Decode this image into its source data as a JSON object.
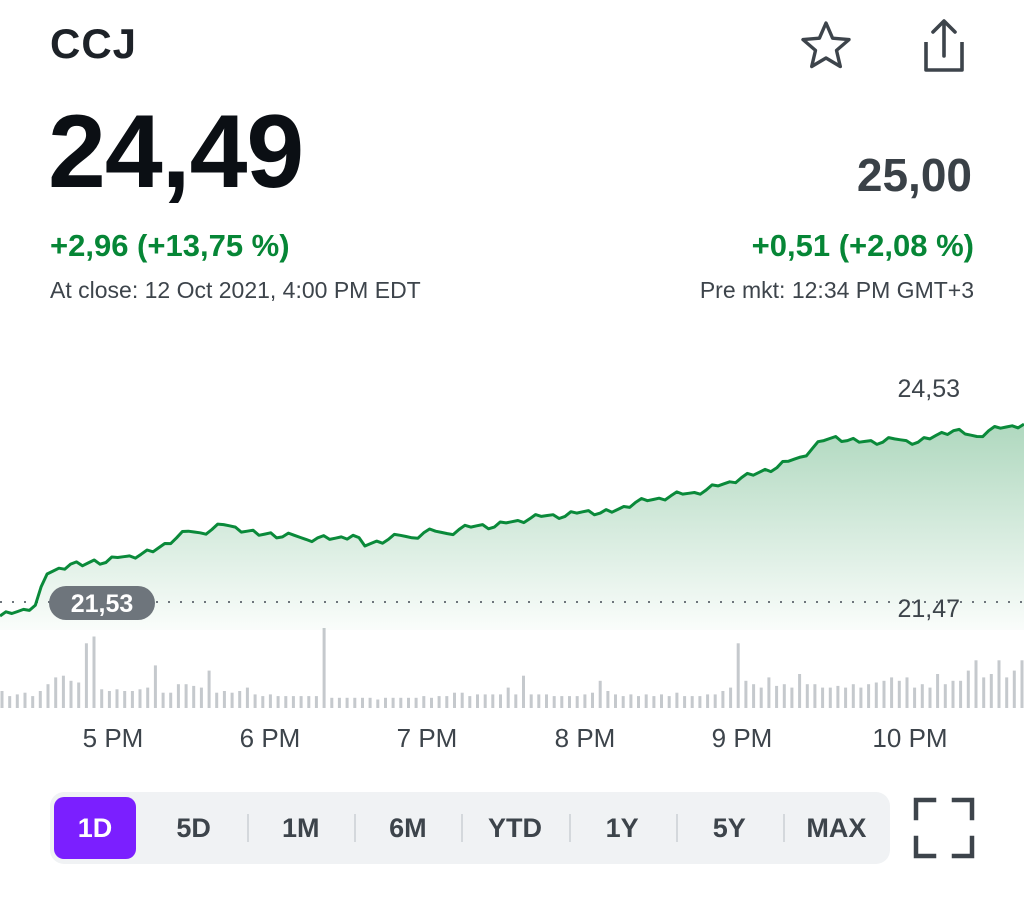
{
  "header": {
    "ticker": "CCJ",
    "star_icon": "star-outline-icon",
    "share_icon": "share-icon"
  },
  "quote": {
    "price": "24,49",
    "change": "+2,96 (+13,75 %)",
    "close_label": "At close: 12 Oct 2021, 4:00 PM EDT",
    "pre_price": "25,00",
    "pre_change": "+0,51 (+2,08 %)",
    "pre_label": "Pre mkt: 12:34 PM GMT+3",
    "accent_color": "#068636"
  },
  "chart_data": {
    "type": "area",
    "x_tick_labels": [
      "5 PM",
      "6 PM",
      "7 PM",
      "8 PM",
      "9 PM",
      "10 PM"
    ],
    "previous_close": "21,53",
    "high_label": "24,53",
    "low_label": "21,47",
    "ylim": [
      21.3,
      24.7
    ],
    "series": [
      {
        "values": [
          21.47,
          21.5,
          21.55,
          21.6,
          21.98,
          22.05,
          22.1,
          22.08,
          22.15,
          22.12,
          22.18,
          22.2,
          22.22,
          22.25,
          22.35,
          22.42,
          22.5,
          22.48,
          22.52,
          22.58,
          22.55,
          22.5,
          22.45,
          22.48,
          22.43,
          22.45,
          22.4,
          22.42,
          22.4,
          22.43,
          22.45,
          22.32,
          22.38,
          22.4,
          22.45,
          22.42,
          22.48,
          22.5,
          22.47,
          22.52,
          22.55,
          22.58,
          22.55,
          22.6,
          22.63,
          22.65,
          22.68,
          22.7,
          22.68,
          22.72,
          22.75,
          22.72,
          22.73,
          22.8,
          22.85,
          22.87,
          22.9,
          22.93,
          22.95,
          22.97,
          23.0,
          23.05,
          23.1,
          23.15,
          23.18,
          23.25,
          23.27,
          23.35,
          23.4,
          23.5,
          23.6,
          23.65,
          23.6,
          23.58,
          23.6,
          23.58,
          23.62,
          23.6,
          23.58,
          23.62,
          23.7,
          23.72,
          23.68,
          23.65,
          23.72,
          23.75,
          23.78,
          23.8
        ]
      }
    ],
    "volumes": [
      10,
      7,
      8,
      9,
      7,
      10,
      14,
      18,
      19,
      16,
      15,
      38,
      42,
      11,
      10,
      11,
      10,
      10,
      11,
      12,
      25,
      9,
      9,
      14,
      14,
      13,
      12,
      22,
      9,
      10,
      9,
      10,
      12,
      8,
      7,
      8,
      7,
      7,
      7,
      7,
      7,
      7,
      47,
      6,
      6,
      6,
      6,
      6,
      6,
      5,
      6,
      6,
      6,
      6,
      6,
      7,
      6,
      7,
      7,
      9,
      9,
      7,
      8,
      8,
      8,
      8,
      12,
      8,
      19,
      8,
      8,
      8,
      7,
      7,
      7,
      7,
      8,
      9,
      16,
      10,
      8,
      7,
      8,
      7,
      8,
      7,
      8,
      7,
      9,
      7,
      7,
      7,
      8,
      8,
      10,
      12,
      38,
      16,
      14,
      12,
      18,
      13,
      14,
      12,
      20,
      14,
      14,
      12,
      12,
      13,
      12,
      14,
      12,
      14,
      15,
      16,
      18,
      16,
      18,
      12,
      14,
      12,
      20,
      14,
      16,
      16,
      22,
      28,
      18,
      20,
      28,
      18,
      22,
      28
    ]
  },
  "range": {
    "items": [
      "1D",
      "5D",
      "1M",
      "6M",
      "YTD",
      "1Y",
      "5Y",
      "MAX"
    ],
    "active": "1D",
    "active_color": "#7b1fff",
    "expand_icon": "fullscreen-icon"
  }
}
